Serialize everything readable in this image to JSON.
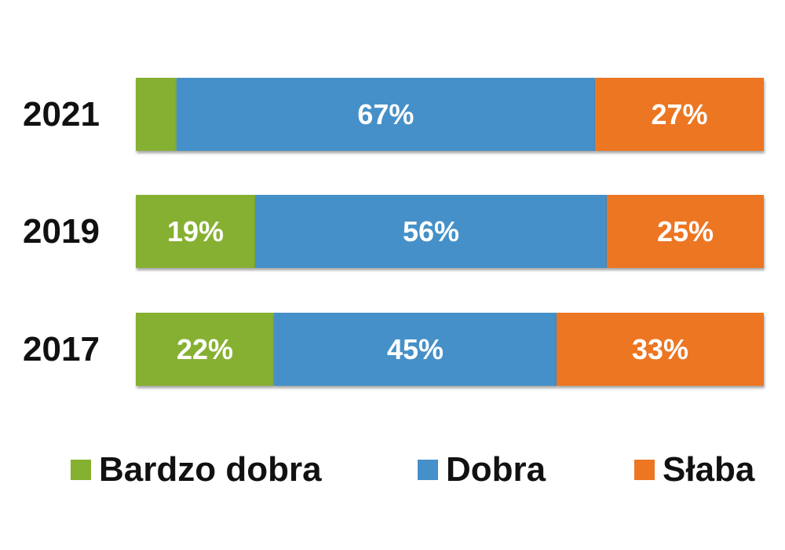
{
  "chart_data": {
    "type": "bar",
    "orientation": "horizontal",
    "stacked": true,
    "percent_stacked": true,
    "categories": [
      "2021",
      "2019",
      "2017"
    ],
    "series": [
      {
        "name": "Bardzo dobra",
        "values": [
          6.5,
          19,
          22
        ],
        "labels": [
          "",
          "19%",
          "22%"
        ],
        "color": "#86b030"
      },
      {
        "name": "Dobra",
        "values": [
          67,
          56,
          45
        ],
        "labels": [
          "67%",
          "56%",
          "45%"
        ],
        "color": "#4590c8"
      },
      {
        "name": "Słaba",
        "values": [
          27,
          25,
          33
        ],
        "labels": [
          "27%",
          "25%",
          "33%"
        ],
        "color": "#ec7622"
      }
    ],
    "xlim": [
      0,
      100
    ],
    "grid": false,
    "legend_position": "bottom"
  }
}
